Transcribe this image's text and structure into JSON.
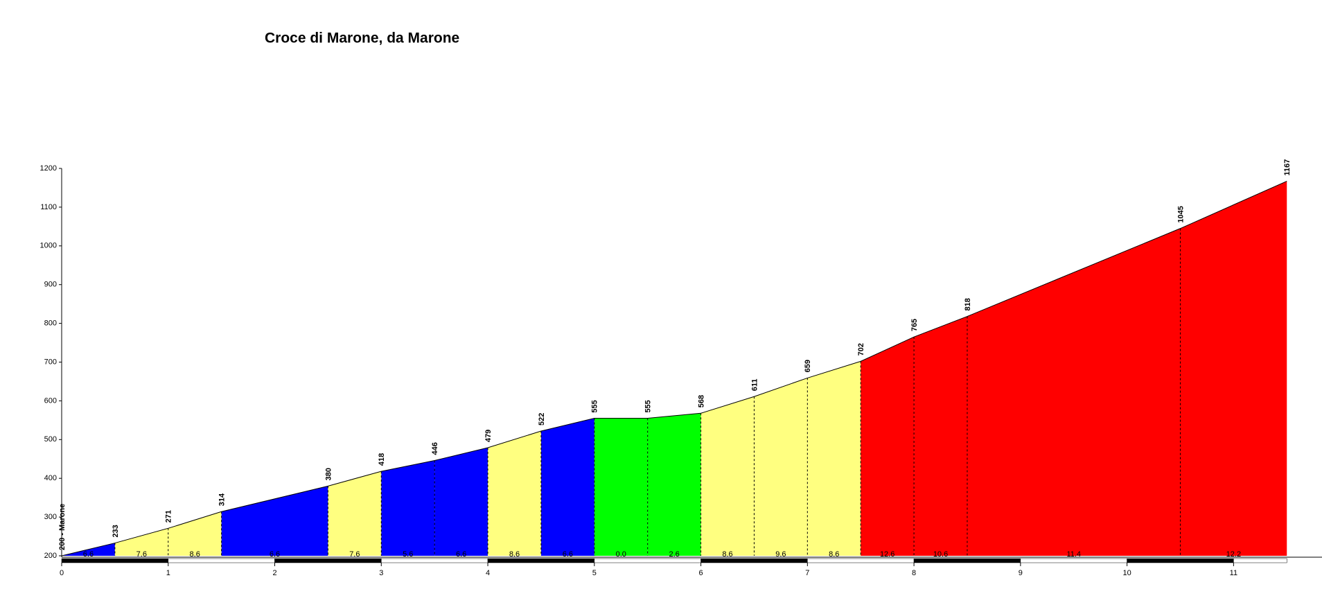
{
  "chart_data": {
    "type": "area",
    "title": "Croce di Marone, da Marone",
    "x": [
      0,
      0.5,
      1,
      1.5,
      2.5,
      3,
      3.5,
      4,
      4.5,
      5,
      5.5,
      6,
      6.5,
      7,
      7.5,
      8,
      8.5,
      10.5,
      11.5
    ],
    "values": [
      200,
      233,
      271,
      314,
      380,
      418,
      446,
      479,
      522,
      555,
      555,
      568,
      611,
      659,
      702,
      765,
      818,
      1045,
      1167
    ],
    "value_labels": [
      "200 - Marone",
      "233",
      "271",
      "314",
      "380",
      "418",
      "446",
      "479",
      "522",
      "555",
      "555",
      "568",
      "611",
      "659",
      "702",
      "765",
      "818",
      "1045",
      "1167"
    ],
    "gradients": {
      "values": [
        6.6,
        7.6,
        8.6,
        6.6,
        7.6,
        5.6,
        6.6,
        8.6,
        6.6,
        0.0,
        2.6,
        8.6,
        9.6,
        8.6,
        12.6,
        10.6,
        11.4,
        12.2
      ],
      "value_labels": [
        "6.6",
        "7.6",
        "8.6",
        "6.6",
        "7.6",
        "5.6",
        "6.6",
        "8.6",
        "6.6",
        "0.0",
        "2.6",
        "8.6",
        "9.6",
        "8.6",
        "12.6",
        "10.6",
        "11.4",
        "12.2"
      ],
      "colors": [
        "#0000ff",
        "#ffff80",
        "#ffff80",
        "#0000ff",
        "#ffff80",
        "#0000ff",
        "#0000ff",
        "#ffff80",
        "#0000ff",
        "#00ff00",
        "#00ff00",
        "#ffff80",
        "#ffff80",
        "#ffff80",
        "#ff0000",
        "#ff0000",
        "#ff0000",
        "#ff0000"
      ]
    },
    "xlim": [
      0,
      11.83
    ],
    "ylim": [
      200,
      1200
    ],
    "xticks": [
      0,
      1,
      2,
      3,
      4,
      5,
      6,
      7,
      8,
      9,
      10,
      11
    ],
    "yticks": [
      200,
      300,
      400,
      500,
      600,
      700,
      800,
      900,
      1000,
      1100,
      1200
    ]
  }
}
